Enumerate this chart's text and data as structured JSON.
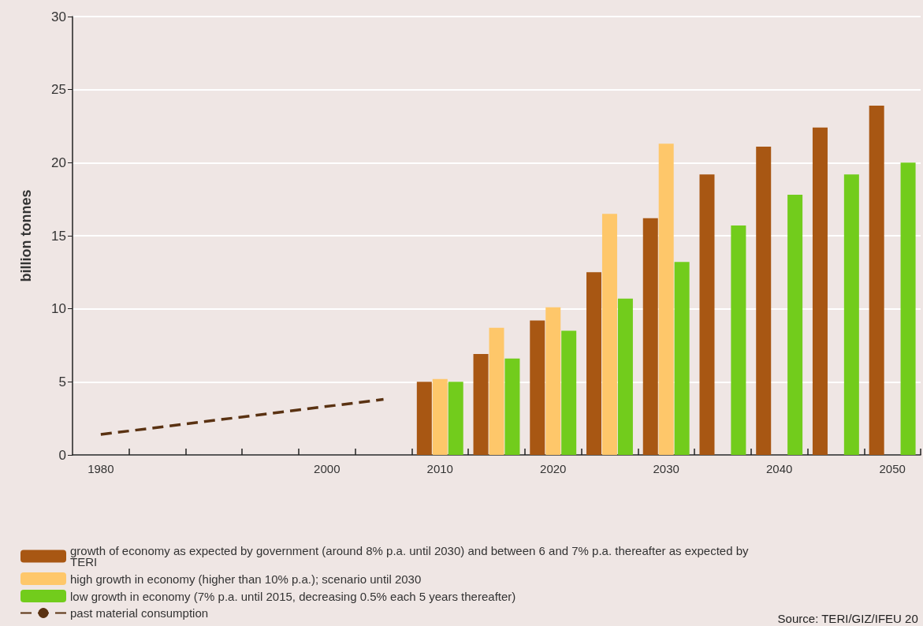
{
  "chart_data": {
    "type": "bar",
    "ylabel": "billion tonnes",
    "x": [
      2010,
      2015,
      2020,
      2025,
      2030,
      2035,
      2040,
      2045,
      2050
    ],
    "series": [
      {
        "name": "growth of economy as expected by government (around 8% p.a. until 2030) and between 6 and 7% p.a. thereafter as expected by TERI",
        "color": "#a85713",
        "values": [
          5.0,
          6.9,
          9.2,
          12.5,
          16.2,
          19.2,
          21.1,
          22.4,
          23.9
        ]
      },
      {
        "name": "high growth in economy (higher than 10% p.a.); scenario until 2030",
        "color": "#fec76a",
        "values": [
          5.2,
          8.7,
          10.1,
          16.5,
          21.3,
          null,
          null,
          null,
          null
        ]
      },
      {
        "name": "low growth in economy (7% p.a. until 2015, decreasing 0.5% each 5 years thereafter)",
        "color": "#72cc1c",
        "values": [
          5.0,
          6.6,
          8.5,
          10.7,
          13.2,
          15.7,
          17.8,
          19.2,
          20.0
        ]
      },
      {
        "name": "past material consumption",
        "type": "line",
        "color": "#5a3212",
        "line_style": "dashed",
        "marker": "none",
        "x": [
          1980,
          2005
        ],
        "values": [
          1.4,
          3.8
        ]
      }
    ],
    "xlim": [
      1977.5,
      2052.5
    ],
    "xticks": [
      {
        "value": 1980,
        "label": "1980"
      },
      {
        "value": 2000,
        "label": "2000"
      },
      {
        "value": 2010,
        "label": "2010"
      },
      {
        "value": 2020,
        "label": "2020"
      },
      {
        "value": 2030,
        "label": "2030"
      },
      {
        "value": 2040,
        "label": "2040"
      },
      {
        "value": 2050,
        "label": "2050"
      },
      {
        "value": 1982.5,
        "label": null
      },
      {
        "value": 1987.5,
        "label": null
      },
      {
        "value": 1992.5,
        "label": null
      },
      {
        "value": 1997.5,
        "label": null
      },
      {
        "value": 2002.5,
        "label": null
      },
      {
        "value": 2007.5,
        "label": null
      },
      {
        "value": 2012.5,
        "label": null
      },
      {
        "value": 2017.5,
        "label": null
      },
      {
        "value": 2022.5,
        "label": null
      },
      {
        "value": 2027.5,
        "label": null
      },
      {
        "value": 2032.5,
        "label": null
      },
      {
        "value": 2037.5,
        "label": null
      },
      {
        "value": 2042.5,
        "label": null
      },
      {
        "value": 2047.5,
        "label": null
      },
      {
        "value": 2052.5,
        "label": null
      }
    ],
    "ylim": [
      0,
      30
    ],
    "yticks": [
      0,
      5,
      10,
      15,
      20,
      25,
      30
    ],
    "grid": "y",
    "legend": "bottom",
    "annotations": [
      "Source: TERI/GIZ/IFEU 20"
    ]
  }
}
